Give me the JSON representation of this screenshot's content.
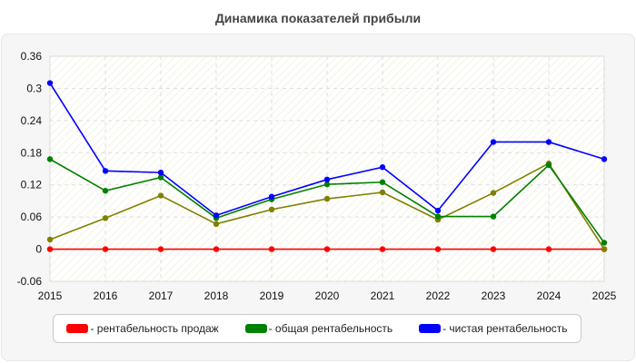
{
  "chart_data": {
    "type": "line",
    "title": "Динамика показателей прибыли",
    "x": [
      2015,
      2016,
      2017,
      2018,
      2019,
      2020,
      2021,
      2022,
      2023,
      2024,
      2025
    ],
    "ylim": [
      -0.06,
      0.36
    ],
    "yticks": [
      "-0.06",
      "0",
      "0.06",
      "0.12",
      "0.18",
      "0.24",
      "0.3",
      "0.36"
    ],
    "grid": true,
    "legend_position": "bottom",
    "series": [
      {
        "name": "- рентабельность продаж",
        "color": "#ff0000",
        "in_legend": true,
        "values": [
          0,
          0,
          0,
          0,
          0,
          0,
          0,
          0,
          0,
          0,
          0
        ]
      },
      {
        "name": "- общая рентабельность",
        "color": "#008000",
        "in_legend": true,
        "values": [
          0.168,
          0.109,
          0.134,
          0.058,
          0.093,
          0.121,
          0.125,
          0.061,
          0.061,
          0.157,
          0.012
        ]
      },
      {
        "name": "- чистая рентабельность",
        "color": "#0000ff",
        "in_legend": true,
        "values": [
          0.31,
          0.146,
          0.143,
          0.063,
          0.098,
          0.13,
          0.153,
          0.072,
          0.2,
          0.2,
          0.168
        ]
      },
      {
        "name": "",
        "color": "#808000",
        "in_legend": false,
        "values": [
          0.018,
          0.058,
          0.1,
          0.047,
          0.074,
          0.094,
          0.106,
          0.055,
          0.105,
          0.16,
          0
        ]
      }
    ]
  }
}
